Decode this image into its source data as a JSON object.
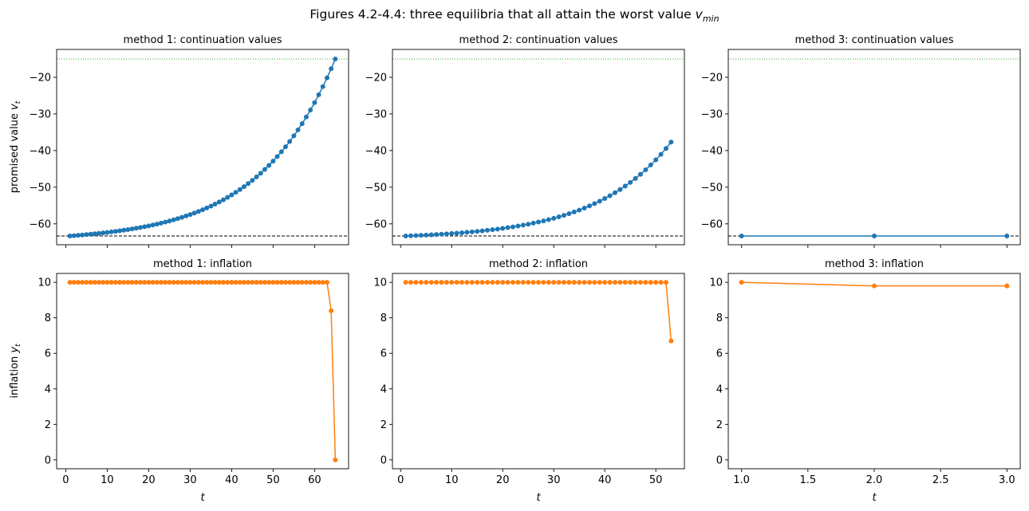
{
  "figure": {
    "suptitle_main": "Figures 4.2-4.4: three equilibria that all attain the worst value ",
    "suptitle_math": "v",
    "suptitle_sub": "min"
  },
  "colors": {
    "value_series": "#1f77b4",
    "inflation_series": "#ff7f0e",
    "upper_bound_line": "#2ca02c",
    "lower_bound_line": "#000000"
  },
  "chart_data": [
    {
      "id": "m1v",
      "type": "line",
      "title": "method 1: continuation values",
      "ylabel_main": "promised value ",
      "ylabel_math": "v",
      "ylabel_sub": "t",
      "xlabel": "",
      "xlim": [
        -2.2,
        68.2
      ],
      "ylim": [
        -65.7,
        -12.4
      ],
      "xticks": [
        0,
        10,
        20,
        30,
        40,
        50,
        60
      ],
      "show_xticklabels": false,
      "yticks": [
        -60,
        -50,
        -40,
        -30,
        -20
      ],
      "ref_lines": [
        {
          "y": -15.0,
          "style": "dotted",
          "color": "#2ca02c"
        },
        {
          "y": -63.3,
          "style": "dashed",
          "color": "#000000"
        }
      ],
      "color": "#1f77b4",
      "shape": "vexp",
      "n": 65,
      "y_start": -63.3,
      "y_end": -15.0
    },
    {
      "id": "m2v",
      "type": "line",
      "title": "method 2: continuation values",
      "ylabel_main": "",
      "ylabel_math": "",
      "ylabel_sub": "",
      "xlabel": "",
      "xlim": [
        -1.6,
        55.6
      ],
      "ylim": [
        -65.7,
        -12.4
      ],
      "xticks": [
        0,
        10,
        20,
        30,
        40,
        50
      ],
      "show_xticklabels": false,
      "yticks": [
        -60,
        -50,
        -40,
        -30,
        -20
      ],
      "ref_lines": [
        {
          "y": -15.0,
          "style": "dotted",
          "color": "#2ca02c"
        },
        {
          "y": -63.3,
          "style": "dashed",
          "color": "#000000"
        }
      ],
      "color": "#1f77b4",
      "shape": "vexp",
      "n": 53,
      "y_start": -63.3,
      "y_end": -37.7
    },
    {
      "id": "m3v",
      "type": "line",
      "title": "method 3: continuation values",
      "ylabel_main": "",
      "ylabel_math": "",
      "ylabel_sub": "",
      "xlabel": "",
      "xlim": [
        0.9,
        3.1
      ],
      "ylim": [
        -65.7,
        -12.4
      ],
      "xticks": [
        1.0,
        1.5,
        2.0,
        2.5,
        3.0
      ],
      "show_xticklabels": false,
      "yticks": [
        -60,
        -50,
        -40,
        -30,
        -20
      ],
      "ref_lines": [
        {
          "y": -15.0,
          "style": "dotted",
          "color": "#2ca02c"
        },
        {
          "y": -63.3,
          "style": "dashed",
          "color": "#000000"
        }
      ],
      "color": "#1f77b4",
      "x": [
        1,
        2,
        3
      ],
      "y": [
        -63.3,
        -63.3,
        -63.3
      ]
    },
    {
      "id": "m1y",
      "type": "line",
      "title": "method 1: inflation",
      "ylabel_main": "inflation ",
      "ylabel_math": "y",
      "ylabel_sub": "t",
      "xlabel": "t",
      "xlim": [
        -2.2,
        68.2
      ],
      "ylim": [
        -0.5,
        10.5
      ],
      "xticks": [
        0,
        10,
        20,
        30,
        40,
        50,
        60
      ],
      "show_xticklabels": true,
      "yticks": [
        0,
        2,
        4,
        6,
        8,
        10
      ],
      "ref_lines": [],
      "color": "#ff7f0e",
      "shape": "flat_then_drop",
      "n": 65,
      "flat_value": 10.0,
      "tail": [
        8.4,
        0.0
      ]
    },
    {
      "id": "m2y",
      "type": "line",
      "title": "method 2: inflation",
      "ylabel_main": "",
      "ylabel_math": "",
      "ylabel_sub": "",
      "xlabel": "t",
      "xlim": [
        -1.6,
        55.6
      ],
      "ylim": [
        -0.5,
        10.5
      ],
      "xticks": [
        0,
        10,
        20,
        30,
        40,
        50
      ],
      "show_xticklabels": true,
      "yticks": [
        0,
        2,
        4,
        6,
        8,
        10
      ],
      "ref_lines": [],
      "color": "#ff7f0e",
      "shape": "flat_then_drop",
      "n": 53,
      "flat_value": 10.0,
      "tail": [
        6.7
      ]
    },
    {
      "id": "m3y",
      "type": "line",
      "title": "method 3: inflation",
      "ylabel_main": "",
      "ylabel_math": "",
      "ylabel_sub": "",
      "xlabel": "t",
      "xlim": [
        0.9,
        3.1
      ],
      "ylim": [
        -0.5,
        10.5
      ],
      "xticks": [
        1.0,
        1.5,
        2.0,
        2.5,
        3.0
      ],
      "show_xticklabels": true,
      "yticks": [
        0,
        2,
        4,
        6,
        8,
        10
      ],
      "ref_lines": [],
      "color": "#ff7f0e",
      "x": [
        1,
        2,
        3
      ],
      "y": [
        10.0,
        9.8,
        9.8
      ]
    }
  ]
}
